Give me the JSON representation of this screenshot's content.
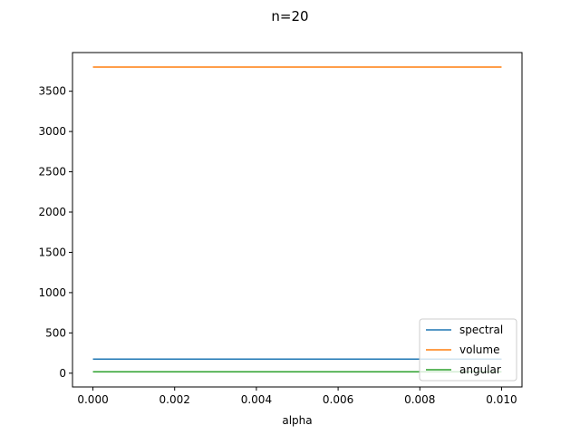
{
  "chart_data": {
    "type": "line",
    "title": "n=20",
    "xlabel": "alpha",
    "ylabel": "",
    "xlim": [
      -0.0005,
      0.0105
    ],
    "ylim": [
      -171,
      3980
    ],
    "xticks": [
      0.0,
      0.002,
      0.004,
      0.006,
      0.008,
      0.01
    ],
    "xtick_labels": [
      "0.000",
      "0.002",
      "0.004",
      "0.006",
      "0.008",
      "0.010"
    ],
    "yticks": [
      0,
      500,
      1000,
      1500,
      2000,
      2500,
      3000,
      3500
    ],
    "ytick_labels": [
      "0",
      "500",
      "1000",
      "1500",
      "2000",
      "2500",
      "3000",
      "3500"
    ],
    "grid": false,
    "legend_position": "lower-right",
    "series": [
      {
        "name": "spectral",
        "color": "#1f77b4",
        "x": [
          0.0,
          0.01
        ],
        "y": [
          175,
          175
        ]
      },
      {
        "name": "volume",
        "color": "#ff7f0e",
        "x": [
          0.0,
          0.01
        ],
        "y": [
          3800,
          3800
        ]
      },
      {
        "name": "angular",
        "color": "#2ca02c",
        "x": [
          0.0,
          0.01
        ],
        "y": [
          18,
          18
        ]
      }
    ]
  }
}
